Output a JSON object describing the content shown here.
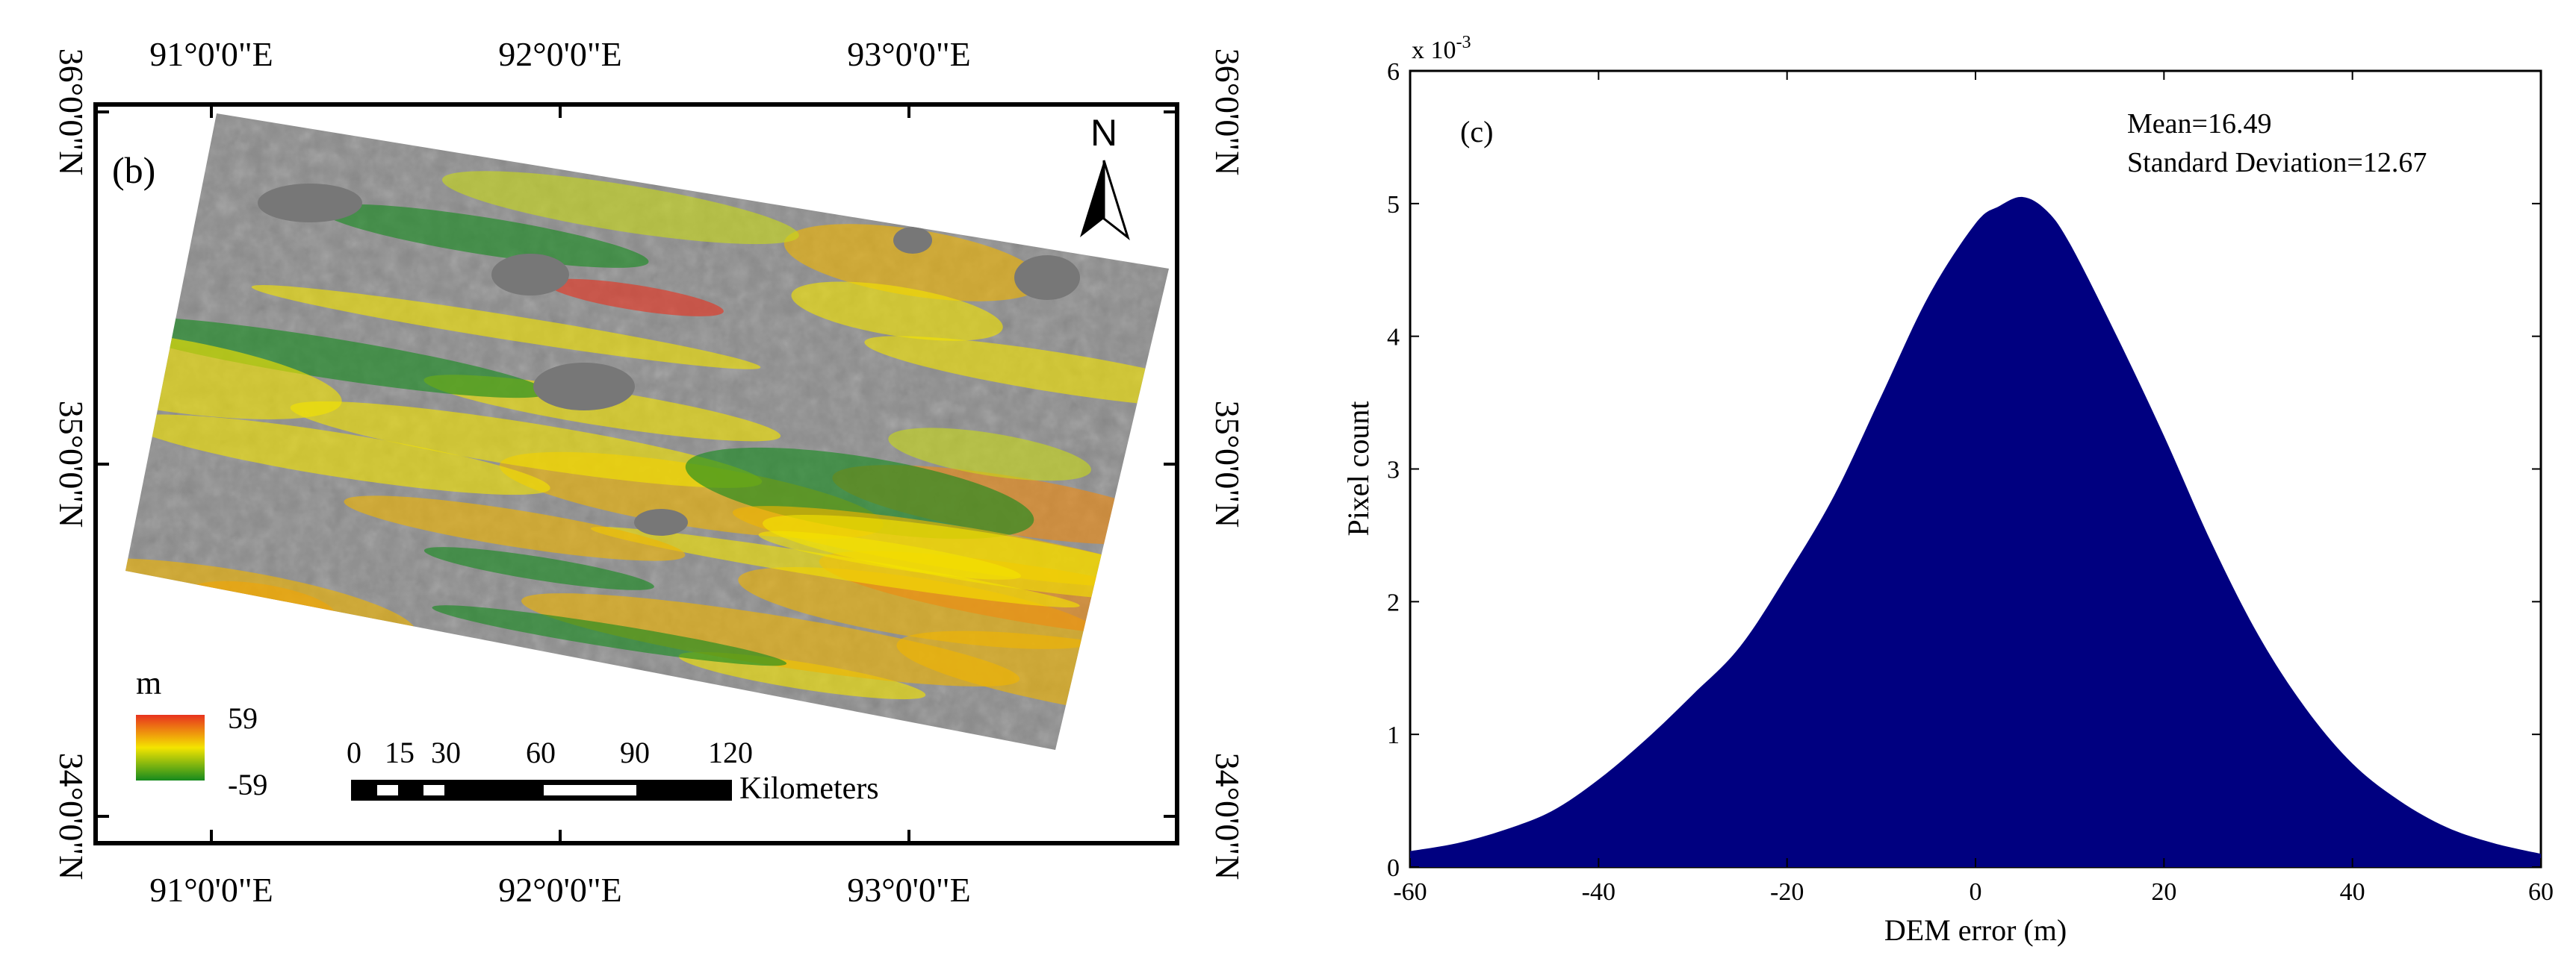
{
  "colors": {
    "histogram_fill": "#000080",
    "dem_high": "#e8321e",
    "dem_mid": "#f4e400",
    "dem_low": "#168a1e",
    "hillshade": "#8c8c8c",
    "lake": "#777777"
  },
  "map": {
    "panel_label": "(b)",
    "north_label": "N",
    "north_icon": "north-arrow-icon",
    "top_lon_labels": [
      "91°0'0\"E",
      "92°0'0\"E",
      "93°0'0\"E"
    ],
    "bottom_lon_labels": [
      "91°0'0\"E",
      "92°0'0\"E",
      "93°0'0\"E"
    ],
    "left_lat_labels": [
      "36°0'0\"N",
      "35°0'0\"N",
      "34°0'0\"N"
    ],
    "right_lat_labels": [
      "36°0'0\"N",
      "35°0'0\"N",
      "34°0'0\"N"
    ],
    "legend": {
      "unit": "m",
      "max_label": "59",
      "min_label": "-59"
    },
    "scale_bar": {
      "ticks": [
        "0",
        "15",
        "30",
        "60",
        "90",
        "120"
      ],
      "unit": "Kilometers"
    }
  },
  "chart_data": {
    "type": "area",
    "panel_label": "(c)",
    "xlabel": "DEM error (m)",
    "ylabel": "Pixel count",
    "y_exponent_label": "x 10",
    "y_exponent_power": "-3",
    "xlim": [
      -60,
      60
    ],
    "ylim": [
      0,
      6
    ],
    "x_ticks": [
      "-60",
      "-40",
      "-20",
      "0",
      "20",
      "40",
      "60"
    ],
    "y_ticks": [
      "0",
      "1",
      "2",
      "3",
      "4",
      "5",
      "6"
    ],
    "annotations": [
      "Mean=16.49",
      "Standard Deviation=12.67"
    ],
    "x": [
      -60,
      -55,
      -50,
      -45,
      -40,
      -35,
      -30,
      -25,
      -20,
      -15,
      -10,
      -5,
      0,
      2.5,
      5,
      7.5,
      10,
      15,
      20,
      25,
      30,
      35,
      40,
      45,
      50,
      55,
      60
    ],
    "y": [
      0.12,
      0.18,
      0.28,
      0.42,
      0.66,
      0.96,
      1.3,
      1.66,
      2.2,
      2.8,
      3.55,
      4.3,
      4.85,
      4.98,
      5.05,
      4.95,
      4.7,
      4.0,
      3.25,
      2.45,
      1.75,
      1.2,
      0.78,
      0.5,
      0.3,
      0.18,
      0.1
    ]
  }
}
